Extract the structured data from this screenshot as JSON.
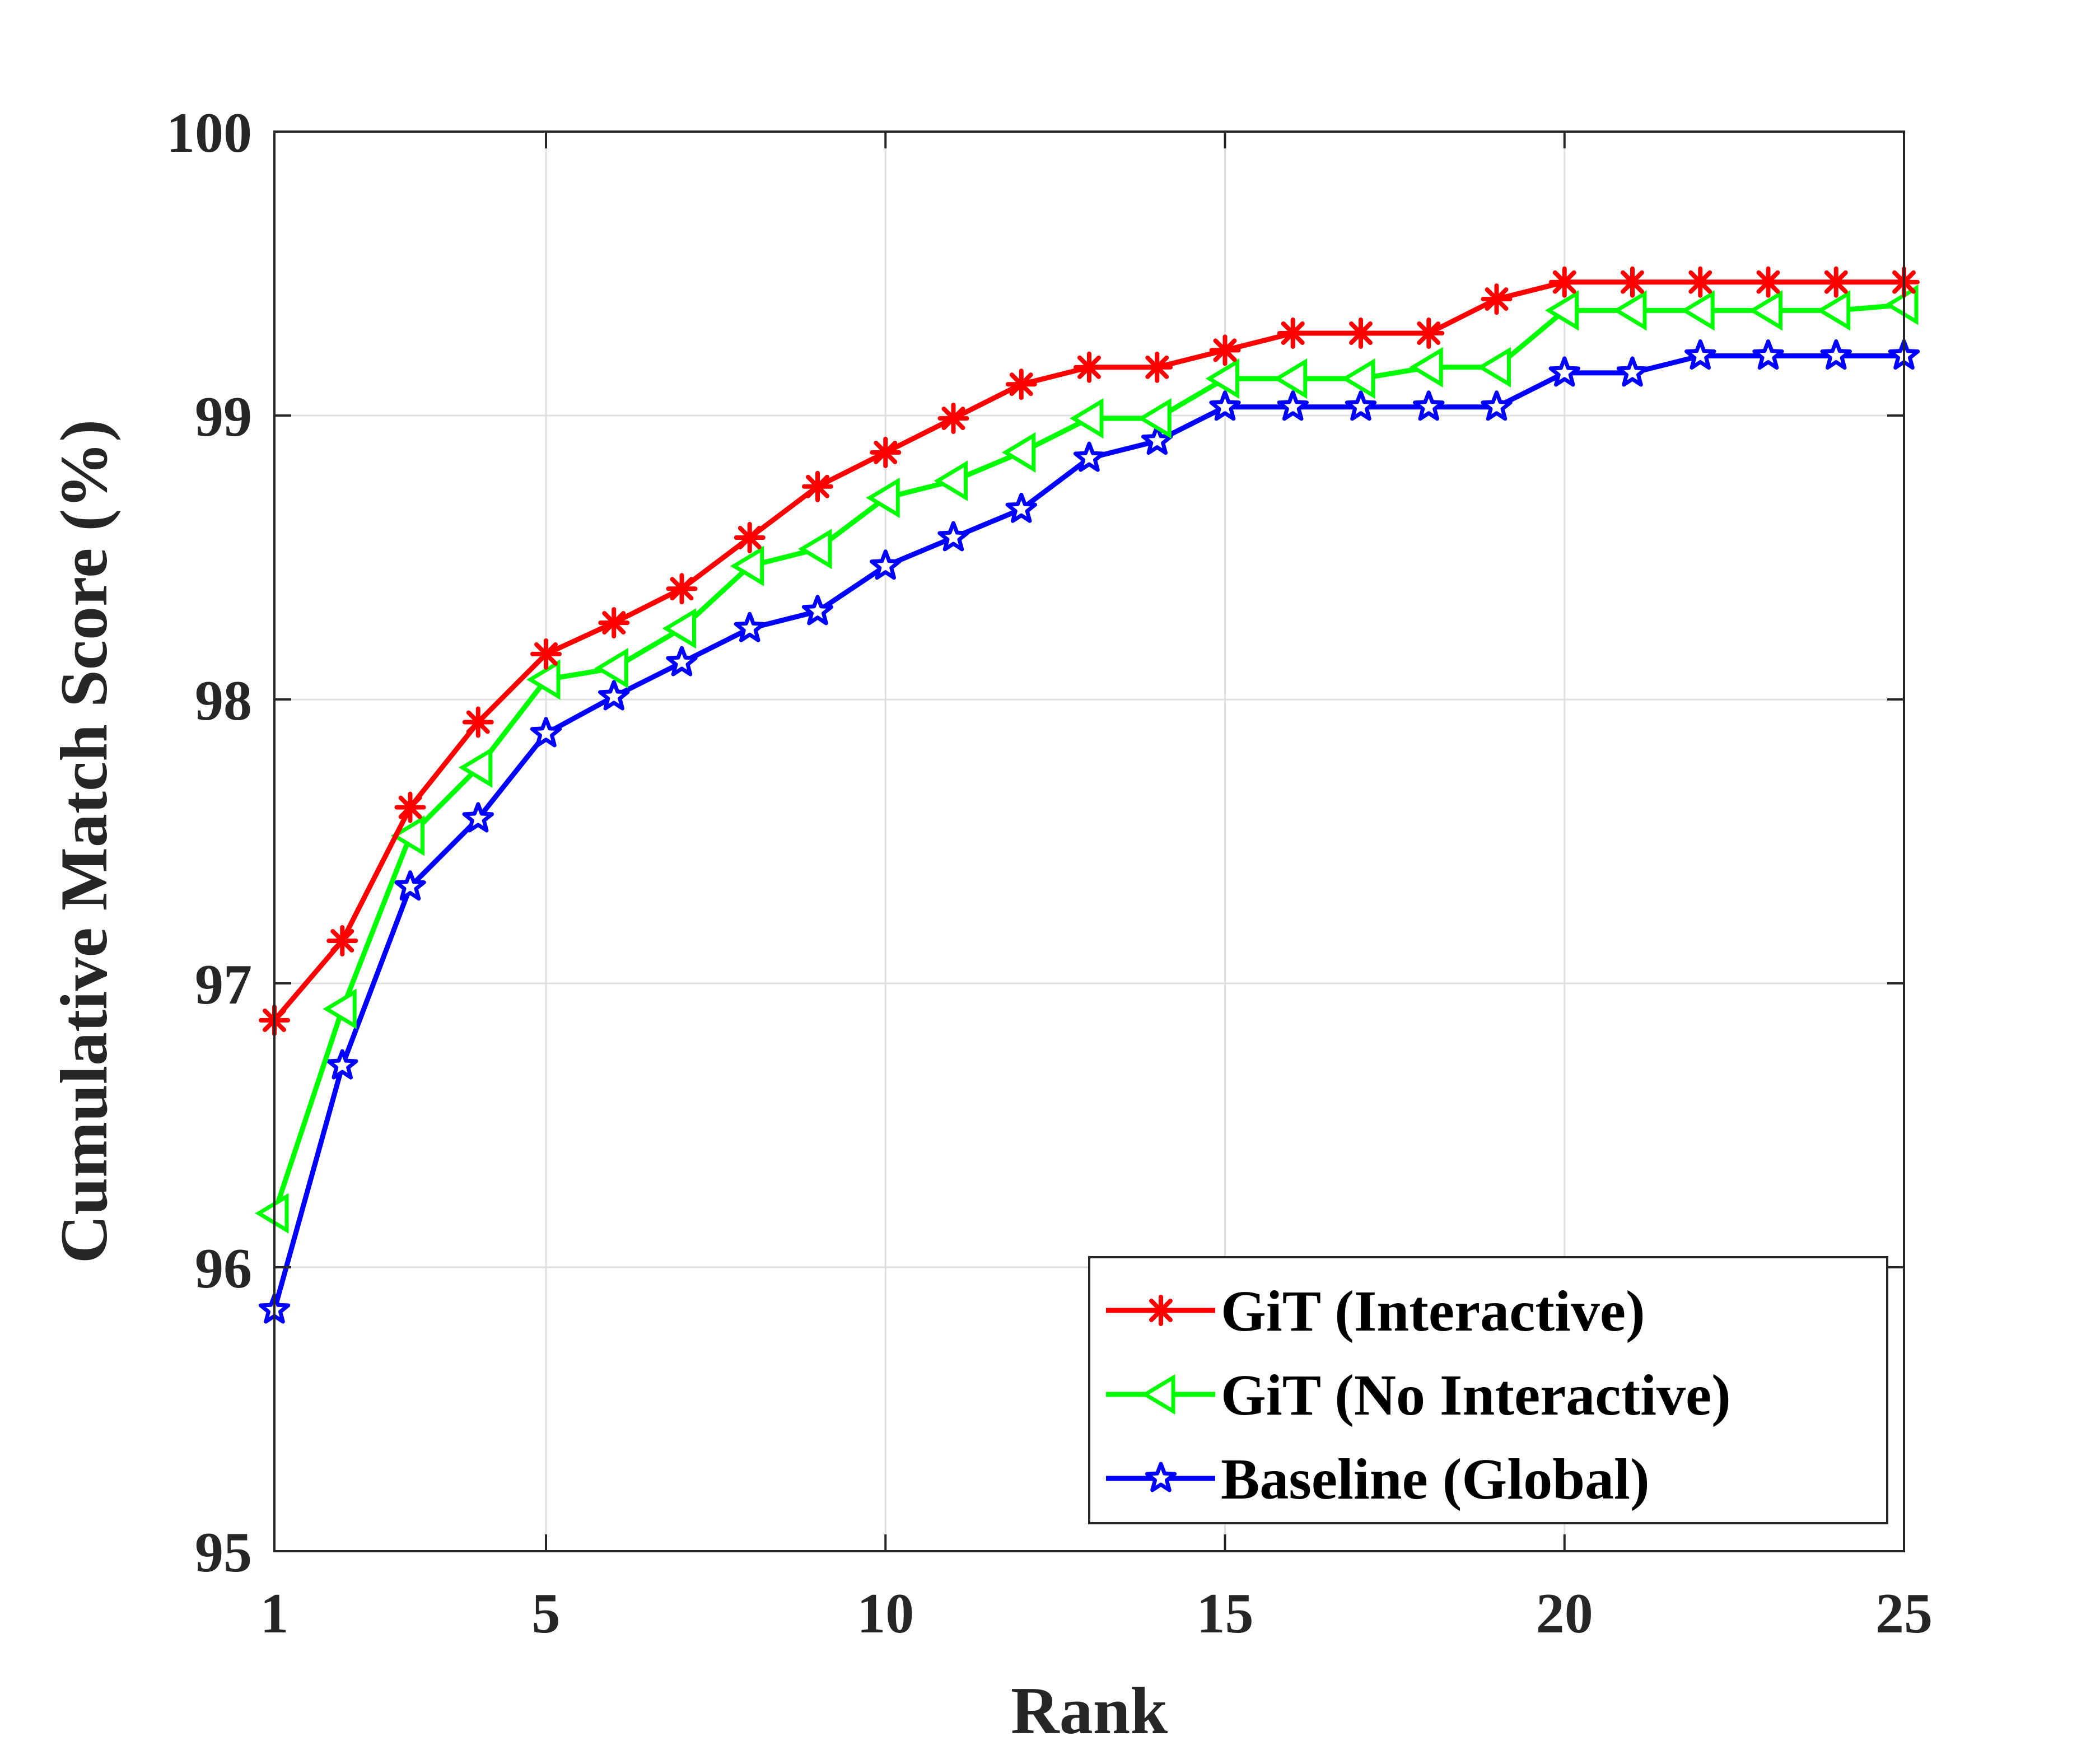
{
  "chart_data": {
    "type": "line",
    "title": "",
    "xlabel": "Rank",
    "ylabel": "Cumulative Match Score (%)",
    "xlim": [
      1,
      25
    ],
    "ylim": [
      95,
      100
    ],
    "xticks": [
      1,
      5,
      10,
      15,
      20,
      25
    ],
    "yticks": [
      95,
      96,
      97,
      98,
      99,
      100
    ],
    "grid": true,
    "legend_position": "bottom-right",
    "x": [
      1,
      2,
      3,
      4,
      5,
      6,
      7,
      8,
      9,
      10,
      11,
      12,
      13,
      14,
      15,
      16,
      17,
      18,
      19,
      20,
      21,
      22,
      23,
      24,
      25
    ],
    "series": [
      {
        "name": "GiT (Interactive)",
        "color": "#ff0000",
        "marker": "asterisk",
        "values": [
          96.87,
          97.15,
          97.62,
          97.92,
          98.16,
          98.27,
          98.39,
          98.57,
          98.75,
          98.87,
          98.99,
          99.11,
          99.17,
          99.17,
          99.23,
          99.29,
          99.29,
          99.29,
          99.41,
          99.47,
          99.47,
          99.47,
          99.47,
          99.47,
          99.47
        ]
      },
      {
        "name": "GiT (No Interactive)",
        "color": "#00ff00",
        "marker": "triangle-left",
        "values": [
          96.19,
          96.91,
          97.52,
          97.76,
          98.07,
          98.11,
          98.25,
          98.47,
          98.53,
          98.71,
          98.77,
          98.87,
          98.99,
          98.99,
          99.13,
          99.13,
          99.13,
          99.17,
          99.17,
          99.37,
          99.37,
          99.37,
          99.37,
          99.37,
          99.39
        ]
      },
      {
        "name": "Baseline (Global)",
        "color": "#0000ff",
        "marker": "star",
        "values": [
          95.85,
          96.71,
          97.34,
          97.58,
          97.88,
          98.01,
          98.13,
          98.25,
          98.31,
          98.47,
          98.57,
          98.67,
          98.85,
          98.91,
          99.03,
          99.03,
          99.03,
          99.03,
          99.03,
          99.15,
          99.15,
          99.21,
          99.21,
          99.21,
          99.21
        ]
      }
    ]
  }
}
